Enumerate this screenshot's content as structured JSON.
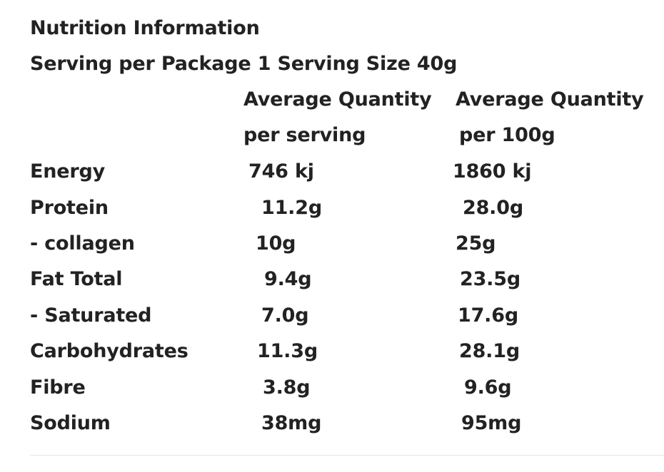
{
  "title": "Nutrition Information",
  "serving_line": "Serving per Package 1 Serving Size 40g",
  "headers": {
    "serving_line1": "Average Quantity",
    "serving_line2": "per serving",
    "per100_line1": "Average Quantity",
    "per100_line2": "per 100g"
  },
  "rows": [
    {
      "nutrient": "Energy",
      "per_serving": "746 kj",
      "per_100g": "1860 kj"
    },
    {
      "nutrient": "Protein",
      "per_serving": "11.2g",
      "per_100g": "28.0g"
    },
    {
      "nutrient": "- collagen",
      "per_serving": "10g",
      "per_100g": "25g"
    },
    {
      "nutrient": "Fat Total",
      "per_serving": "9.4g",
      "per_100g": "23.5g"
    },
    {
      "nutrient": "- Saturated",
      "per_serving": "7.0g",
      "per_100g": "17.6g"
    },
    {
      "nutrient": "Carbohydrates",
      "per_serving": "11.3g",
      "per_100g": "28.1g"
    },
    {
      "nutrient": "Fibre",
      "per_serving": "3.8g",
      "per_100g": "9.6g"
    },
    {
      "nutrient": "Sodium",
      "per_serving": "38mg",
      "per_100g": "95mg"
    }
  ]
}
